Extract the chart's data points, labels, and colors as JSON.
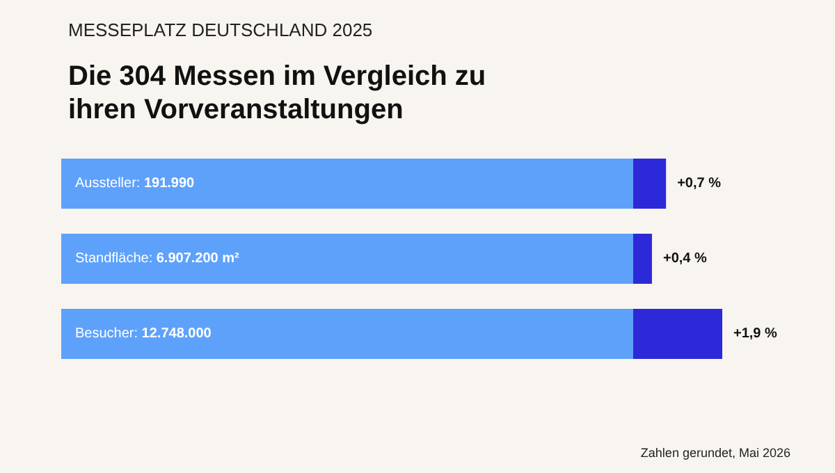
{
  "chart_data": {
    "type": "bar",
    "orientation": "horizontal",
    "subtitle": "MESSEPLATZ DEUTSCHLAND 2025",
    "title": "Die 304 Messen im Vergleich zu ihren Vorveranstaltungen",
    "categories": [
      "Aussteller: 191.990",
      "Standfläche: 6.907.200 m²",
      "Besucher: 12.748.000"
    ],
    "series": [
      {
        "color": "#2c2ad8",
        "values": [
          0.7,
          0.4,
          1.9
        ],
        "value_labels": [
          "+0,7 %",
          "+0,4 %",
          "+1,9 %"
        ]
      }
    ],
    "annotations": [
      "Zahlen gerundet, Mai 2026"
    ]
  }
}
